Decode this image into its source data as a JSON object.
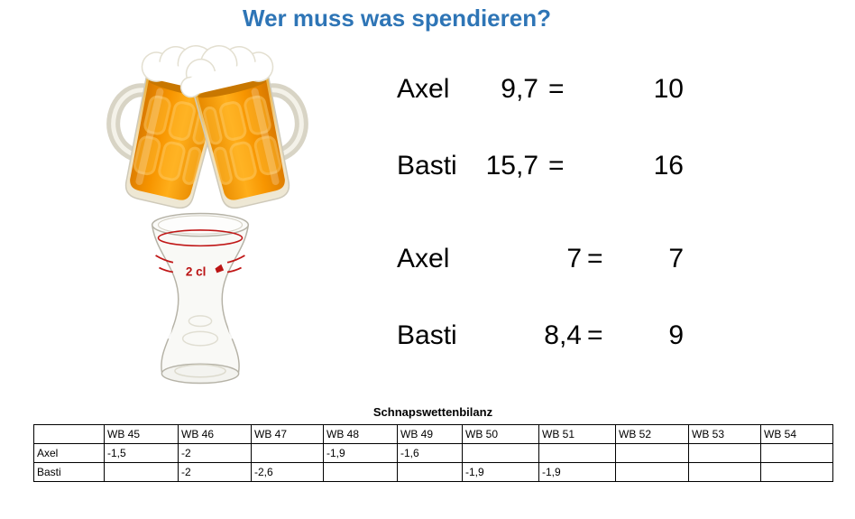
{
  "title": {
    "text": "Wer muss was spendieren?",
    "color": "#2E75B6"
  },
  "images": {
    "beer_mugs": "two-clinking-beer-mugs",
    "shot_glass": "shot-glass",
    "shot_glass_label": "2 cl"
  },
  "equations": {
    "beer": [
      {
        "name": "Axel",
        "value": "9,7",
        "equals": "=",
        "result": "10"
      },
      {
        "name": "Basti",
        "value": "15,7",
        "equals": "=",
        "result": "16"
      }
    ],
    "schnaps": [
      {
        "name": "Axel",
        "value": "7",
        "equals": "=",
        "result": "7"
      },
      {
        "name": "Basti",
        "value": "8,4",
        "equals": "=",
        "result": "9"
      }
    ]
  },
  "table": {
    "title": "Schnapswettenbilanz",
    "columns": [
      "",
      "WB 45",
      "WB 46",
      "WB 47",
      "WB 48",
      "WB 49",
      "WB 50",
      "WB 51",
      "WB 52",
      "WB 53",
      "WB 54"
    ],
    "rows": [
      {
        "label": "Axel",
        "values": [
          "-1,5",
          "-2",
          "",
          "-1,9",
          "-1,6",
          "",
          "",
          "",
          "",
          ""
        ]
      },
      {
        "label": "Basti",
        "values": [
          "",
          "-2",
          "-2,6",
          "",
          "",
          "-1,9",
          "-1,9",
          "",
          "",
          ""
        ]
      }
    ]
  },
  "colors": {
    "title_blue": "#2E75B6",
    "beer_amber": "#f79500",
    "red_mark": "#c01616",
    "table_border": "#000000"
  }
}
